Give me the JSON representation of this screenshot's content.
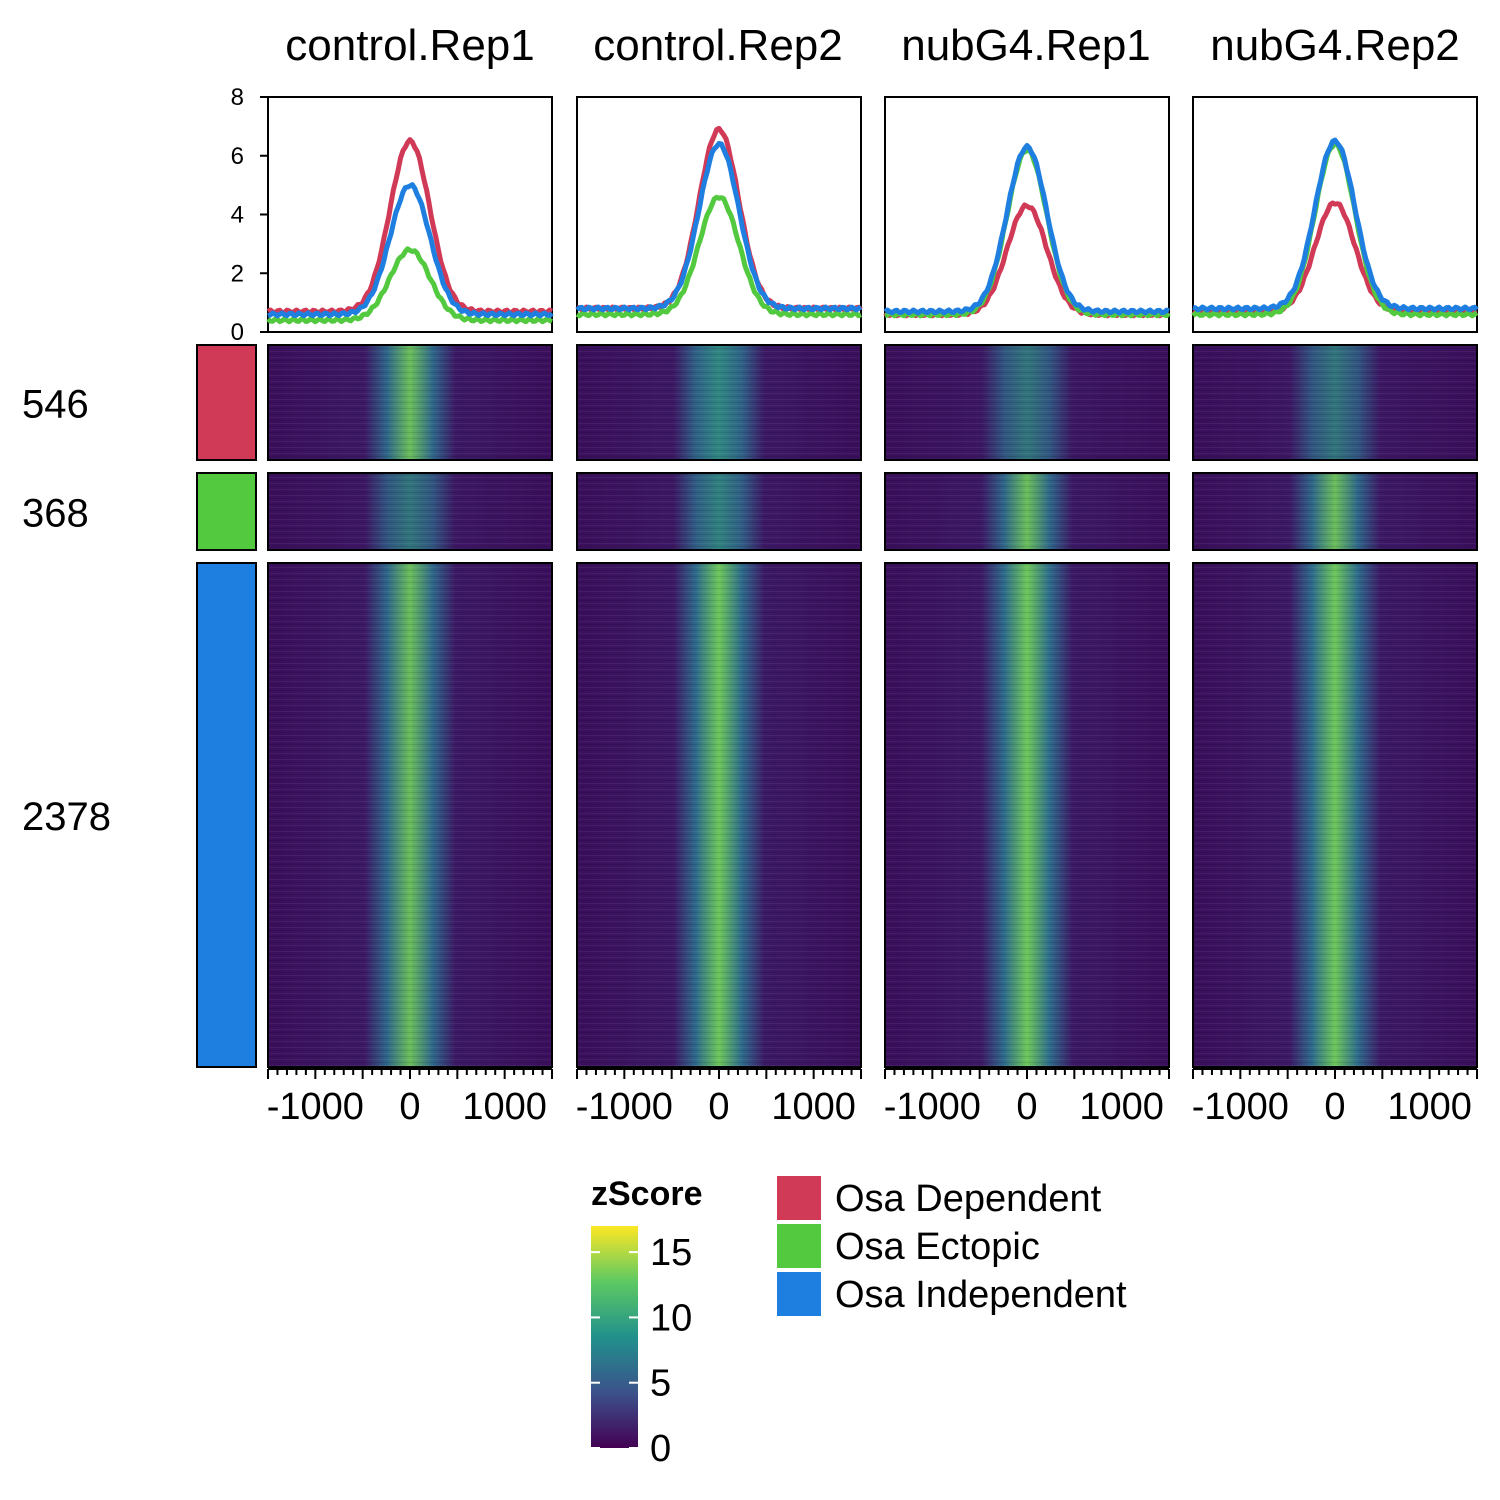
{
  "chart_data": {
    "type": "heatmap",
    "samples": [
      "control.Rep1",
      "control.Rep2",
      "nubG4.Rep1",
      "nubG4.Rep2"
    ],
    "profile": {
      "type": "line",
      "ylim": [
        0,
        8
      ],
      "yticks": [
        0,
        2,
        4,
        6,
        8
      ],
      "xlim": [
        -1500,
        1500
      ],
      "series_peaks": [
        {
          "name": "Osa Dependent",
          "color": "#d13a56",
          "peak": [
            6.5,
            6.9,
            4.3,
            4.4
          ],
          "baseline": [
            0.7,
            0.8,
            0.6,
            0.7
          ]
        },
        {
          "name": "Osa Ectopic",
          "color": "#52c93f",
          "peak": [
            2.8,
            4.6,
            6.2,
            6.4
          ],
          "baseline": [
            0.4,
            0.6,
            0.6,
            0.6
          ]
        },
        {
          "name": "Osa Independent",
          "color": "#1f7fe0",
          "peak": [
            5.0,
            6.4,
            6.3,
            6.5
          ],
          "baseline": [
            0.6,
            0.8,
            0.7,
            0.8
          ]
        }
      ]
    },
    "clusters": [
      {
        "name": "Osa Dependent",
        "count": "546",
        "color": "#d13a56",
        "intensity": [
          8,
          7,
          4,
          4
        ]
      },
      {
        "name": "Osa Ectopic",
        "count": "368",
        "color": "#52c93f",
        "intensity": [
          4,
          6,
          8,
          8
        ]
      },
      {
        "name": "Osa Independent",
        "count": "2378",
        "color": "#1f7fe0",
        "intensity": [
          8,
          9,
          9,
          9
        ]
      }
    ],
    "heatmap_x": {
      "range": [
        -1500,
        1500
      ],
      "tick_labels": [
        "-1000",
        "0",
        "1000"
      ],
      "tick_values": [
        -1000,
        0,
        1000
      ]
    },
    "colorbar": {
      "title": "zScore",
      "range": [
        0,
        17
      ],
      "ticks": [
        0,
        5,
        10,
        15
      ],
      "tick_labels": [
        "0",
        "5",
        "10",
        "15"
      ],
      "palette": [
        "#440154",
        "#3b528b",
        "#21918c",
        "#5ec962",
        "#fde725"
      ]
    },
    "legend": [
      "Osa Dependent",
      "Osa Ectopic",
      "Osa Independent"
    ]
  }
}
